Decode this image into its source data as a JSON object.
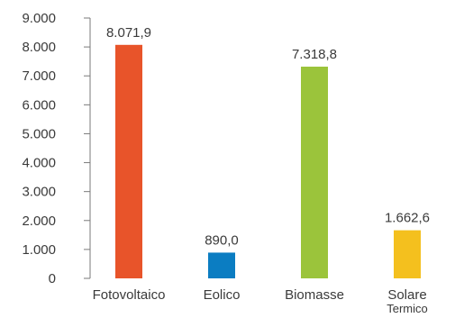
{
  "chart_data": {
    "type": "bar",
    "categories": [
      "Fotovoltaico",
      "Eolico",
      "Biomasse",
      "Solare Termico"
    ],
    "category_lines": [
      [
        "Fotovoltaico"
      ],
      [
        "Eolico"
      ],
      [
        "Biomasse"
      ],
      [
        "Solare",
        "Termico"
      ]
    ],
    "values": [
      8071.9,
      890.0,
      7318.8,
      1662.6
    ],
    "data_labels": [
      "8.071,9",
      "890,0",
      "7.318,8",
      "1.662,6"
    ],
    "colors": [
      "#e8542a",
      "#0b7dc2",
      "#9bc43b",
      "#f4c01e"
    ],
    "ylim": [
      0,
      9000
    ],
    "yticks": [
      0,
      1000,
      2000,
      3000,
      4000,
      5000,
      6000,
      7000,
      8000,
      9000
    ],
    "ytick_labels": [
      "0",
      "1.000",
      "2.000",
      "3.000",
      "4.000",
      "5.000",
      "6.000",
      "7.000",
      "8.000",
      "9.000"
    ],
    "title": "",
    "xlabel": "",
    "ylabel": "",
    "grid": false,
    "axis_color": "#7a7a7a"
  }
}
